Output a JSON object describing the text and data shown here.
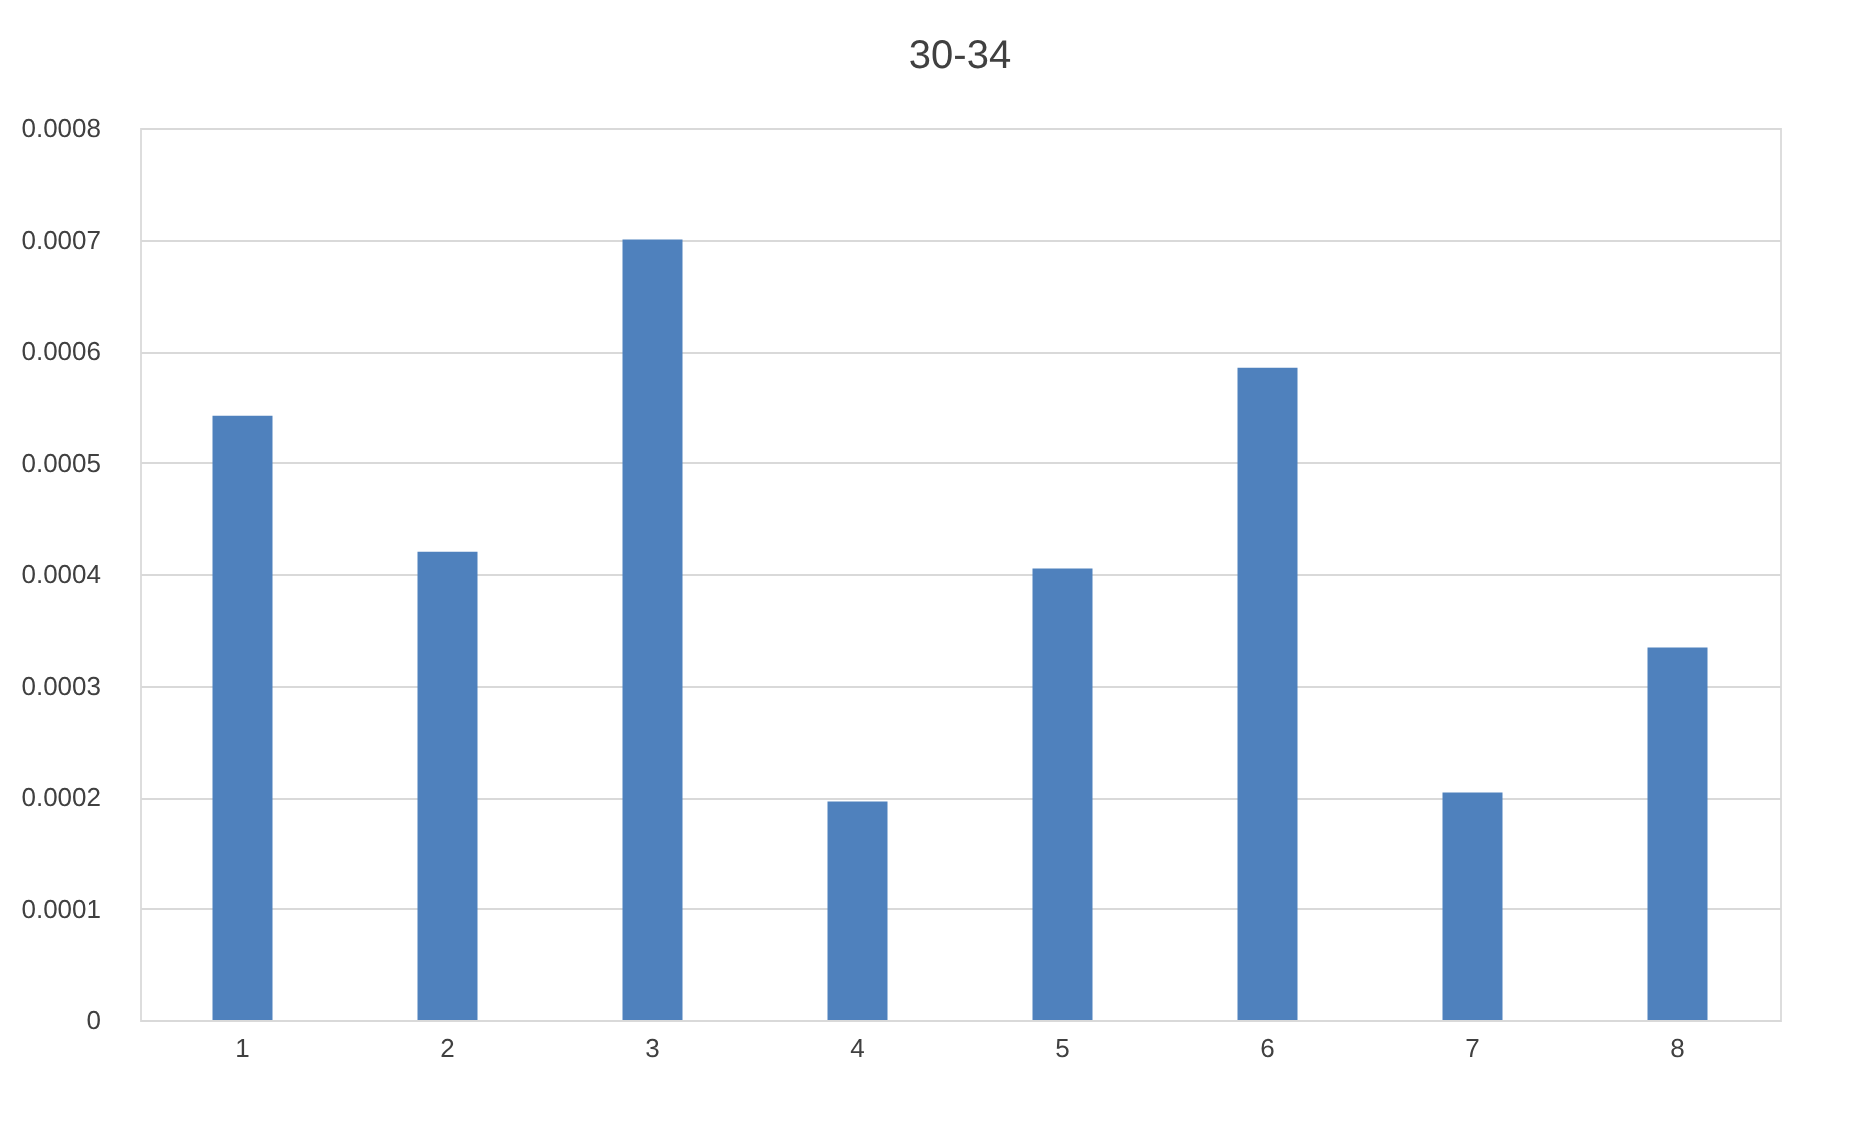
{
  "chart_data": {
    "type": "bar",
    "title": "30-34",
    "categories": [
      "1",
      "2",
      "3",
      "4",
      "5",
      "6",
      "7",
      "8"
    ],
    "values": [
      0.000542,
      0.00042,
      0.0007,
      0.000196,
      0.000405,
      0.000585,
      0.000204,
      0.000334
    ],
    "color": "#4f81bd",
    "ylim": [
      0,
      0.0008
    ],
    "yticks": [
      0,
      0.0001,
      0.0002,
      0.0003,
      0.0004,
      0.0005,
      0.0006,
      0.0007,
      0.0008
    ],
    "grid": "y"
  }
}
